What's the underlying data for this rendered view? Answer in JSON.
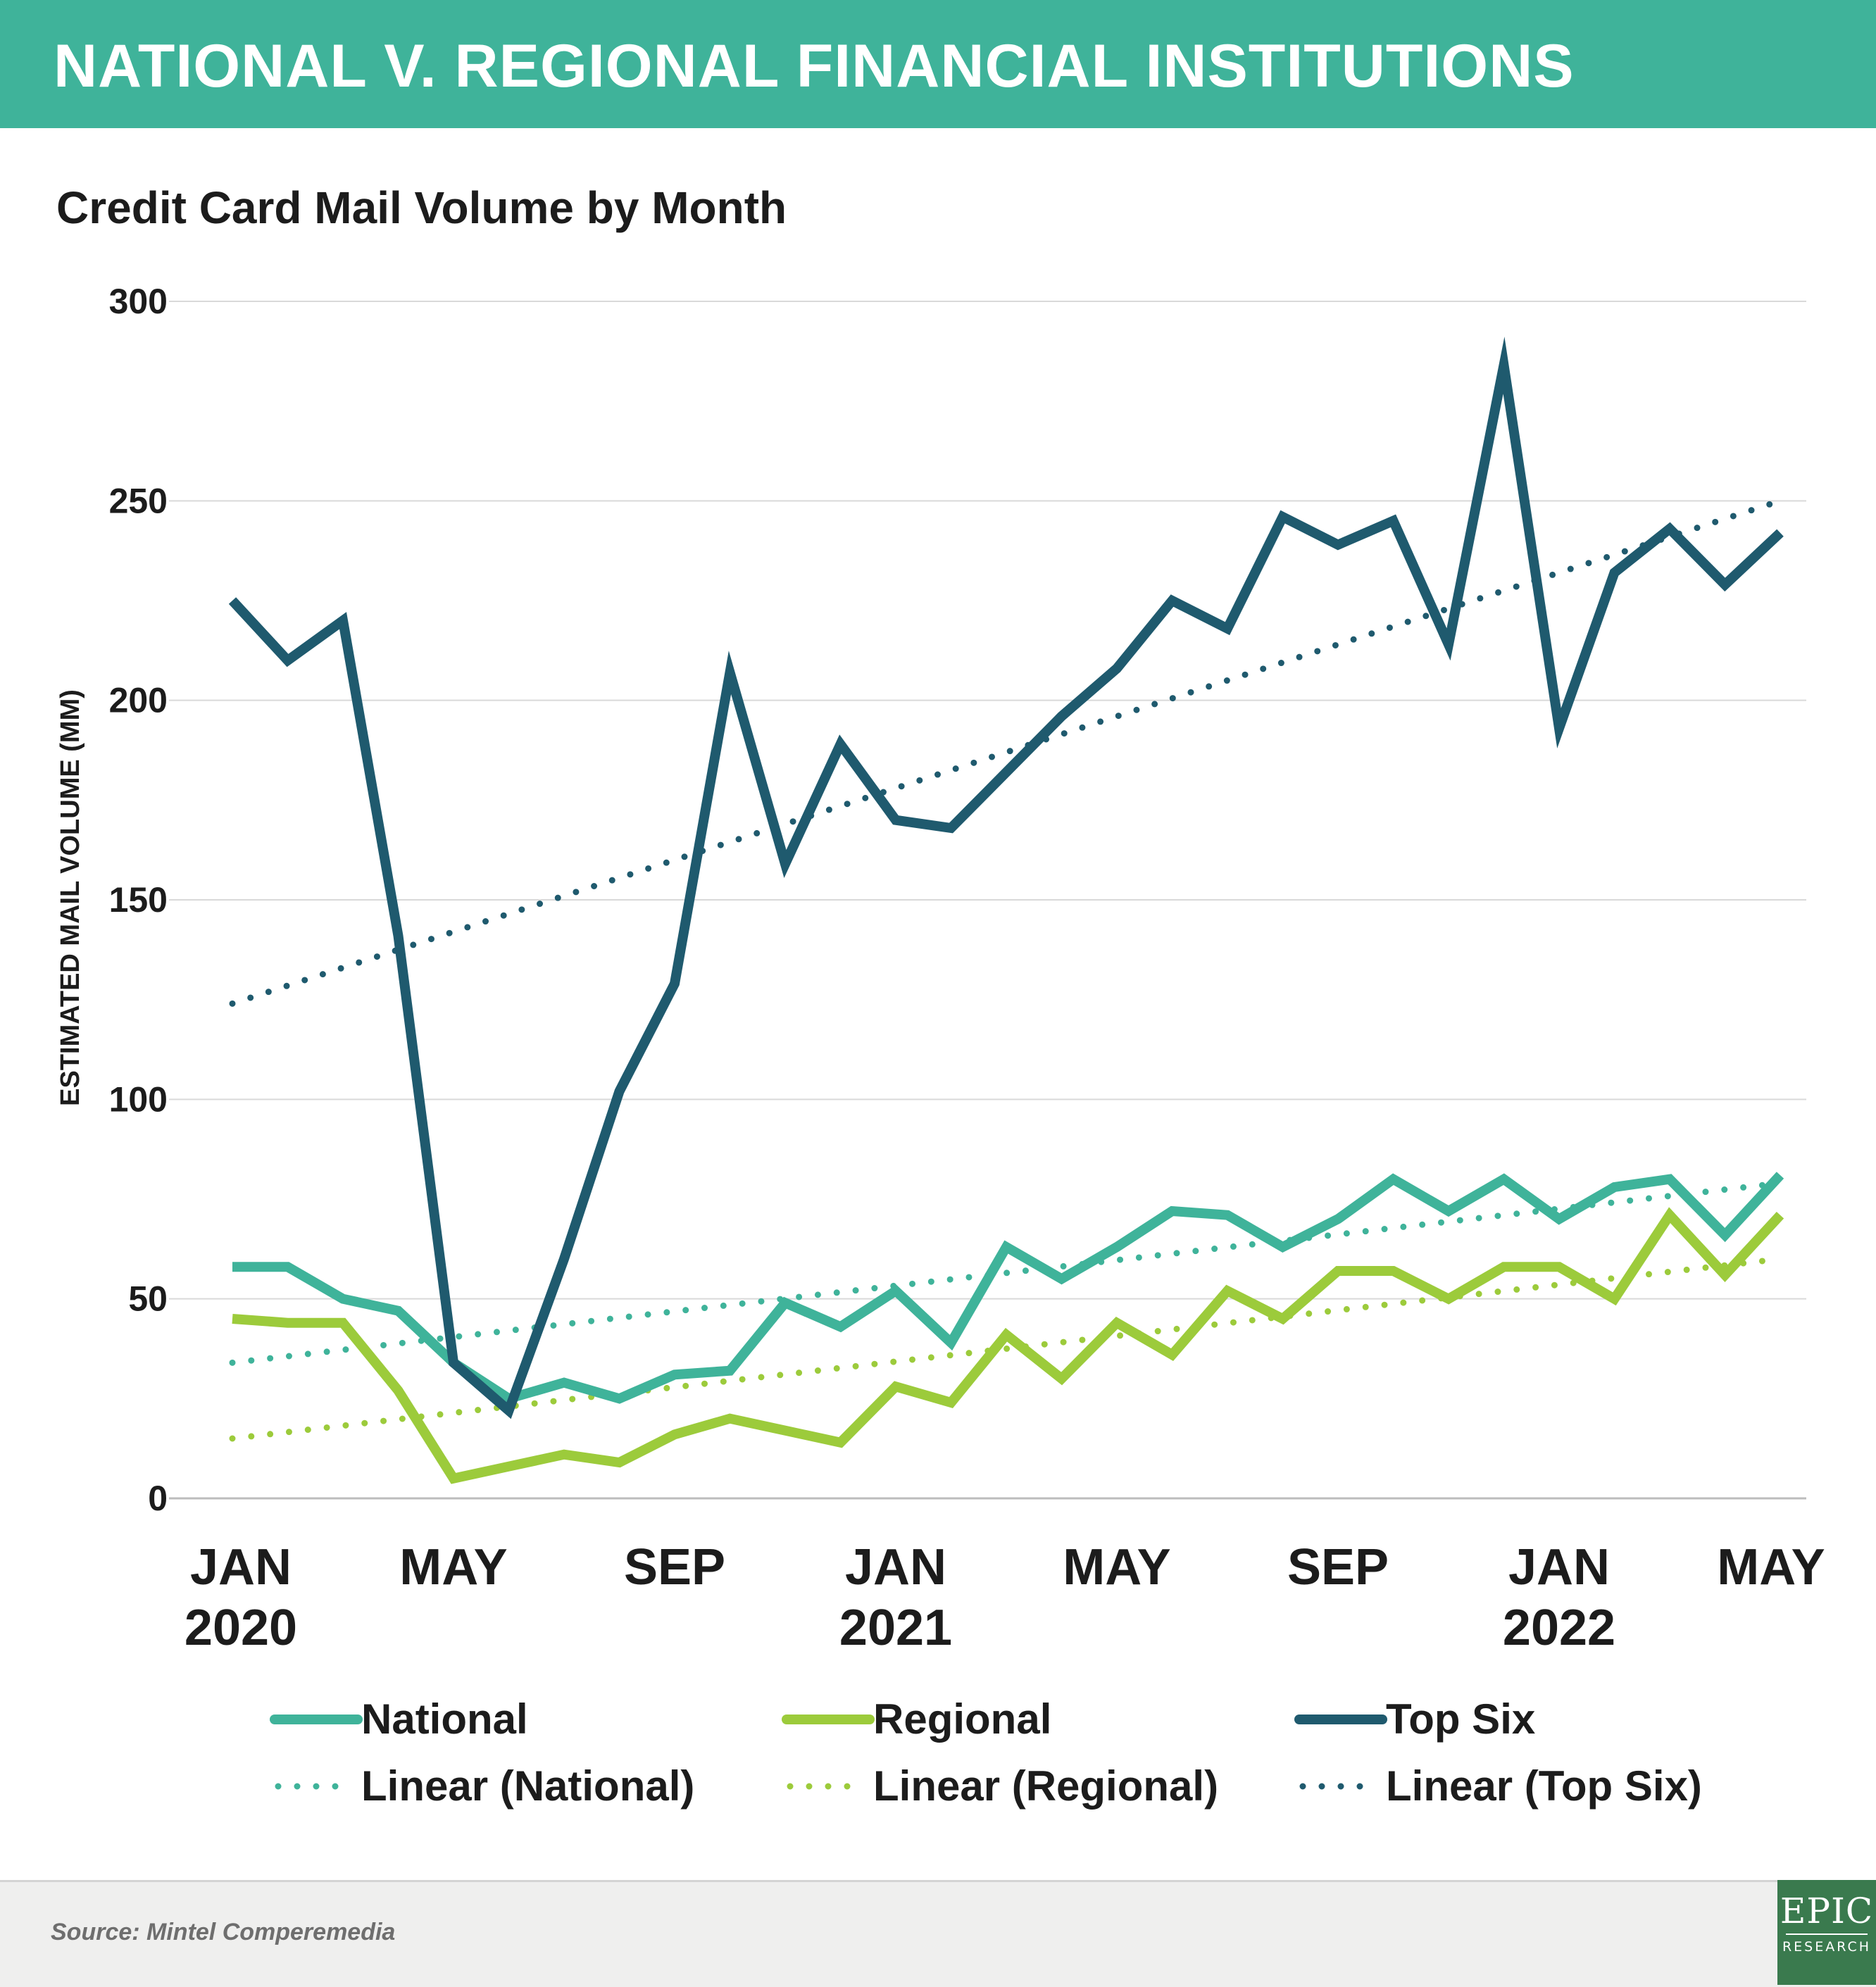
{
  "header": {
    "title": "NATIONAL V. REGIONAL FINANCIAL INSTITUTIONS"
  },
  "footer": {
    "source": "Source: Mintel Comperemedia",
    "logo_top": "EPIC",
    "logo_bottom": "RESEARCH"
  },
  "chart_data": {
    "type": "line",
    "title": "Credit Card Mail Volume by Month",
    "ylabel": "ESTIMATED MAIL VOLUME (MM)",
    "ylim": [
      0,
      300
    ],
    "yticks": [
      0,
      50,
      100,
      150,
      200,
      250,
      300
    ],
    "grid": true,
    "legend_position": "bottom",
    "x": [
      "2020-01",
      "2020-02",
      "2020-03",
      "2020-04",
      "2020-05",
      "2020-06",
      "2020-07",
      "2020-08",
      "2020-09",
      "2020-10",
      "2020-11",
      "2020-12",
      "2021-01",
      "2021-02",
      "2021-03",
      "2021-04",
      "2021-05",
      "2021-06",
      "2021-07",
      "2021-08",
      "2021-09",
      "2021-10",
      "2021-11",
      "2021-12",
      "2022-01",
      "2022-02",
      "2022-03",
      "2022-04",
      "2022-05"
    ],
    "xtick_labels": [
      {
        "x": "2020-01",
        "label": "JAN",
        "year": "2020"
      },
      {
        "x": "2020-05",
        "label": "MAY",
        "year": ""
      },
      {
        "x": "2020-09",
        "label": "SEP",
        "year": ""
      },
      {
        "x": "2021-01",
        "label": "JAN",
        "year": "2021"
      },
      {
        "x": "2021-05",
        "label": "MAY",
        "year": ""
      },
      {
        "x": "2021-09",
        "label": "SEP",
        "year": ""
      },
      {
        "x": "2022-01",
        "label": "JAN",
        "year": "2022"
      },
      {
        "x": "2022-05",
        "label": "MAY",
        "year": ""
      }
    ],
    "series": [
      {
        "name": "National",
        "color": "#3fb39a",
        "style": "solid",
        "values": [
          58,
          58,
          50,
          47,
          34,
          25,
          29,
          25,
          31,
          32,
          49,
          43,
          52,
          39,
          63,
          55,
          63,
          72,
          71,
          63,
          70,
          80,
          72,
          80,
          70,
          78,
          80,
          66,
          81
        ]
      },
      {
        "name": "Regional",
        "color": "#9ccb3b",
        "style": "solid",
        "values": [
          45,
          44,
          44,
          27,
          5,
          8,
          11,
          9,
          16,
          20,
          17,
          14,
          28,
          24,
          41,
          30,
          44,
          36,
          52,
          45,
          57,
          57,
          50,
          58,
          58,
          50,
          71,
          56,
          71
        ]
      },
      {
        "name": "Top Six",
        "color": "#1f5a6e",
        "style": "solid",
        "values": [
          225,
          210,
          220,
          141,
          34,
          22,
          60,
          102,
          129,
          207,
          159,
          189,
          170,
          168,
          182,
          196,
          208,
          225,
          218,
          246,
          239,
          245,
          214,
          284,
          193,
          232,
          243,
          229,
          242
        ]
      },
      {
        "name": "Linear (National)",
        "color": "#3fb39a",
        "style": "dotted",
        "start": 34,
        "end": 79
      },
      {
        "name": "Linear (Regional)",
        "color": "#9ccb3b",
        "style": "dotted",
        "start": 15,
        "end": 60
      },
      {
        "name": "Linear (Top Six)",
        "color": "#1f5a6e",
        "style": "dotted",
        "start": 124,
        "end": 250
      }
    ]
  }
}
